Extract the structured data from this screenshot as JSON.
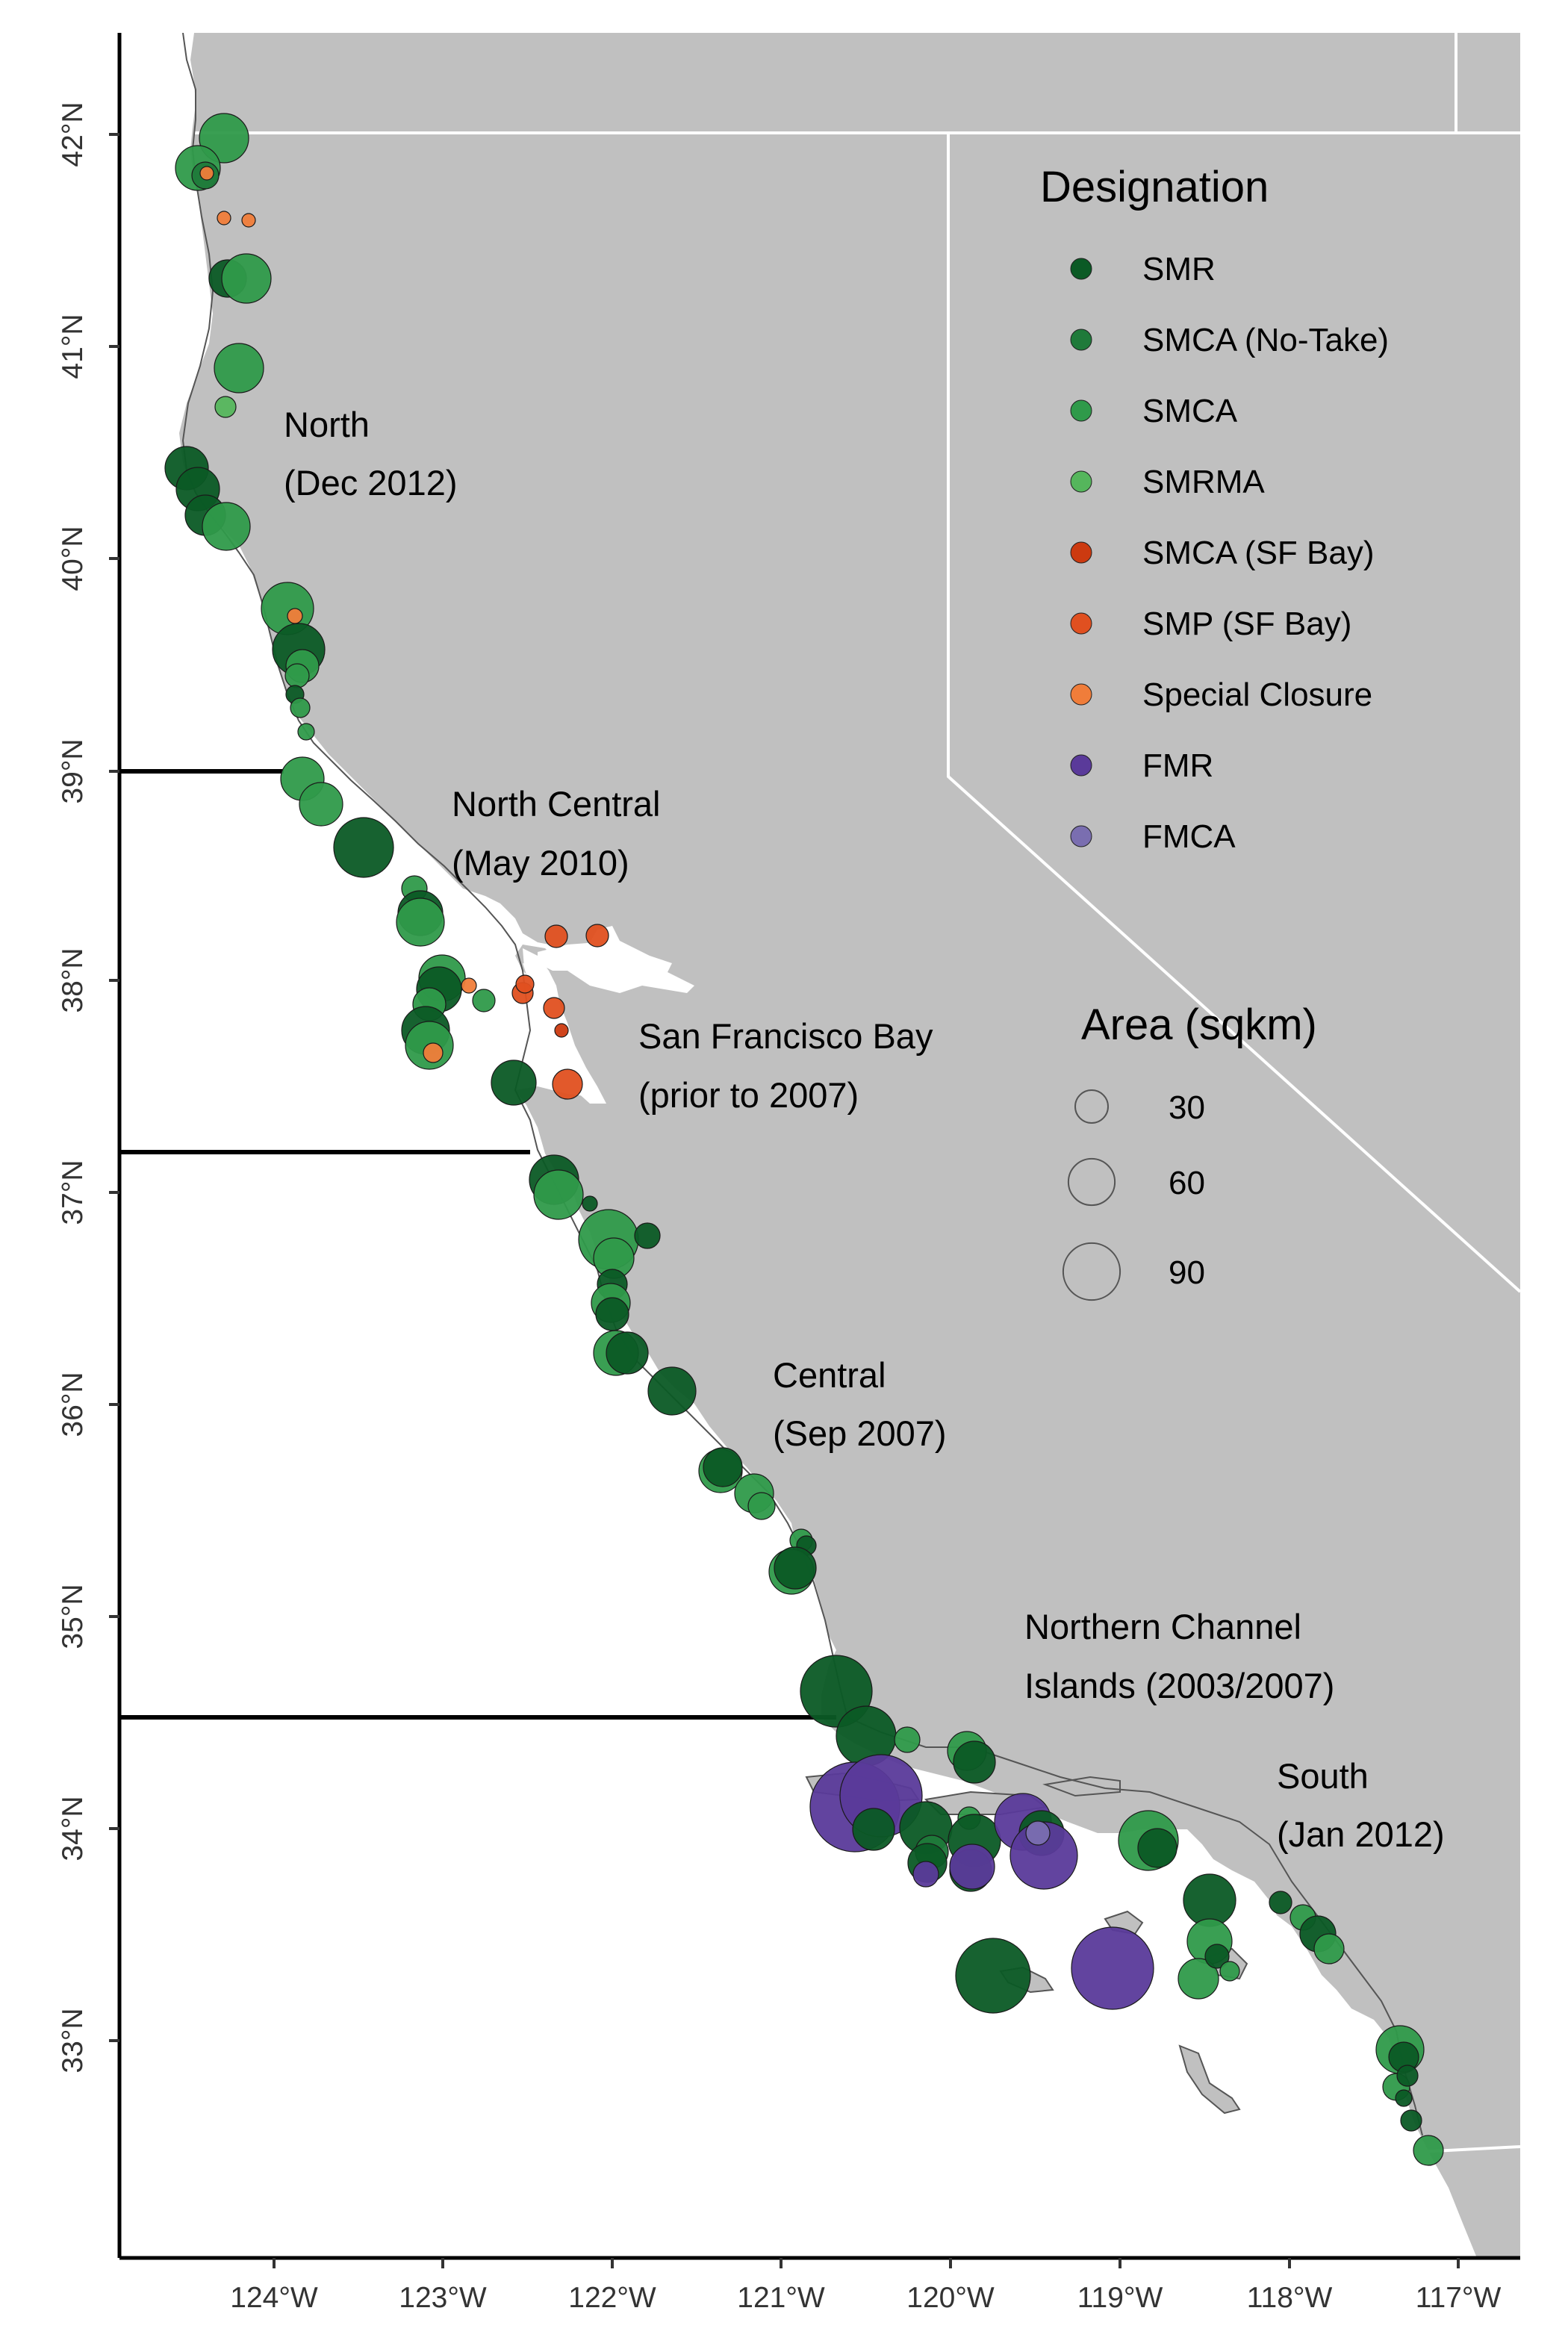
{
  "map": {
    "x_axis": {
      "ticks": [
        "124°W",
        "123°W",
        "122°W",
        "121°W",
        "120°W",
        "119°W",
        "118°W",
        "117°W"
      ]
    },
    "y_axis": {
      "ticks": [
        "33°N",
        "34°N",
        "35°N",
        "36°N",
        "37°N",
        "38°N",
        "39°N",
        "40°N",
        "41°N",
        "42°N"
      ]
    }
  },
  "regions": [
    {
      "line1": "North",
      "line2": "(Dec 2012)"
    },
    {
      "line1": "North Central",
      "line2": "(May 2010)"
    },
    {
      "line1": "San Francisco Bay",
      "line2": "(prior to 2007)"
    },
    {
      "line1": "Central",
      "line2": "(Sep 2007)"
    },
    {
      "line1": "Northern Channel",
      "line2": "Islands (2003/2007)"
    },
    {
      "line1": "South",
      "line2": "(Jan 2012)"
    }
  ],
  "legend": {
    "designation_title": "Designation",
    "designations": [
      {
        "label": "SMR",
        "color": "#0b5a25"
      },
      {
        "label": "SMCA (No-Take)",
        "color": "#1f7a3a"
      },
      {
        "label": "SMCA",
        "color": "#2f9a4a"
      },
      {
        "label": "SMRMA",
        "color": "#55b65c"
      },
      {
        "label": "SMCA (SF Bay)",
        "color": "#cc3a10"
      },
      {
        "label": "SMP (SF Bay)",
        "color": "#e05020"
      },
      {
        "label": "Special Closure",
        "color": "#f07d3a"
      },
      {
        "label": "FMR",
        "color": "#5a3a9a"
      },
      {
        "label": "FMCA",
        "color": "#7a6eb0"
      }
    ],
    "area_title": "Area (sqkm)",
    "area_sizes": [
      {
        "label": "30",
        "value": 30
      },
      {
        "label": "60",
        "value": 60
      },
      {
        "label": "90",
        "value": 90
      }
    ]
  },
  "colors": {
    "land": "#c0c0c0",
    "ocean": "#ffffff",
    "border": "#ffffff",
    "frame": "#000000"
  }
}
